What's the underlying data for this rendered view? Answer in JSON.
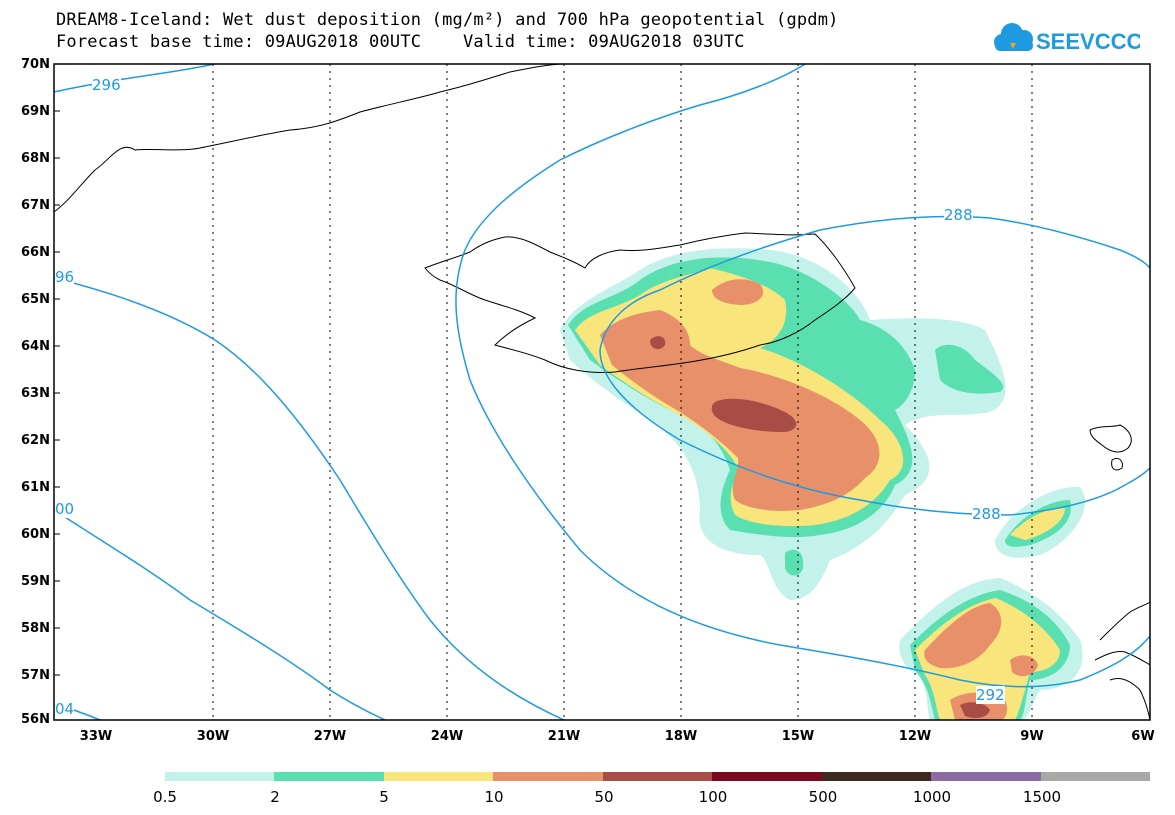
{
  "header": {
    "title_line1": "DREAM8-Iceland: Wet dust deposition (mg/m²) and 700 hPa geopotential (gpdm)",
    "title_line2": "Forecast base time: 09AUG2018 00UTC    Valid time: 09AUG2018 03UTC"
  },
  "logo": {
    "text": "SEEVCCC",
    "icon": "cloud-logo-icon",
    "color": "#1e9be0"
  },
  "map": {
    "extent": {
      "lon_min": -34,
      "lon_max": -6,
      "lat_min": 56,
      "lat_max": 70
    },
    "lat_labels": [
      "70N",
      "69N",
      "68N",
      "67N",
      "66N",
      "65N",
      "64N",
      "63N",
      "62N",
      "61N",
      "60N",
      "59N",
      "58N",
      "57N",
      "56N"
    ],
    "lon_labels": [
      "33W",
      "30W",
      "27W",
      "24W",
      "21W",
      "18W",
      "15W",
      "12W",
      "9W",
      "6W"
    ],
    "contour_color": "#1e9be0",
    "contour_labels": [
      "296",
      "96",
      "00",
      "04",
      "288",
      "288",
      "292"
    ]
  },
  "colorbar": {
    "colors": [
      "#c2f2ea",
      "#5ae0b0",
      "#f8e57c",
      "#e8906a",
      "#a84d45",
      "#7b0a1f",
      "#3d2b20",
      "#8e6aa2",
      "#a8a8a8"
    ],
    "labels": [
      "0.5",
      "2",
      "5",
      "10",
      "50",
      "100",
      "500",
      "1000",
      "1500"
    ]
  }
}
